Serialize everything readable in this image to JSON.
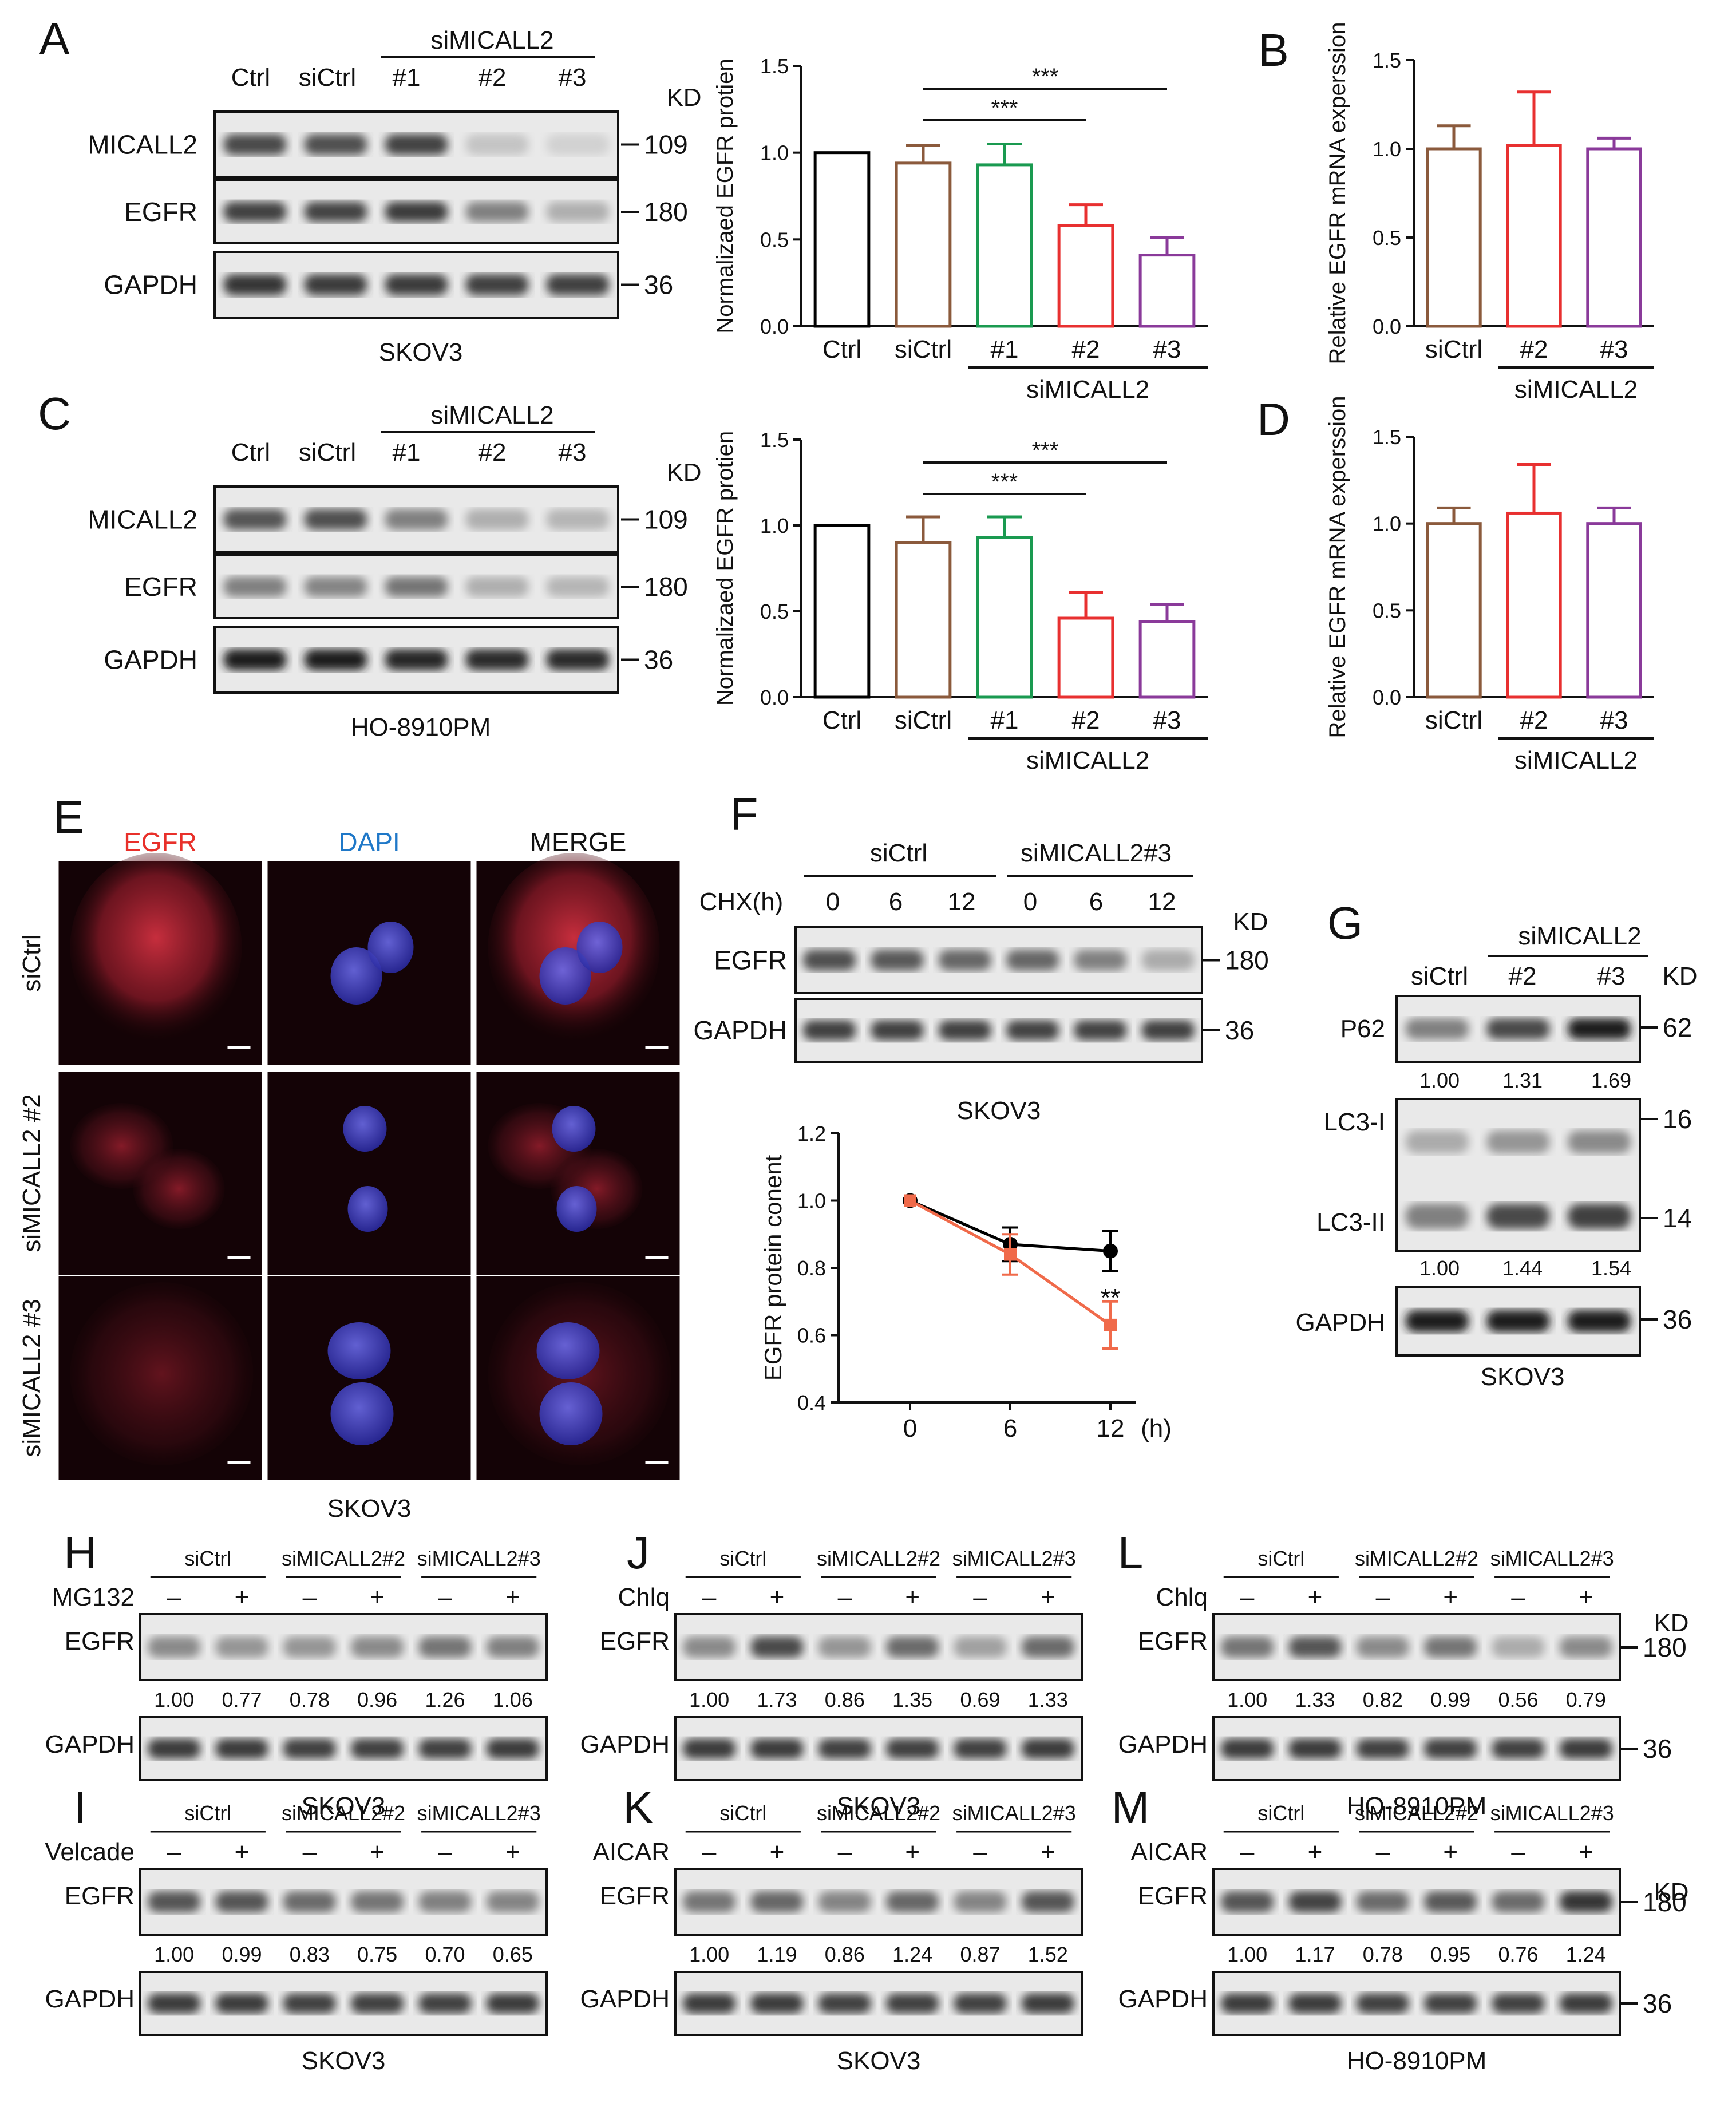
{
  "kd_label": "KD",
  "A": {
    "letter": "A",
    "group_label": "siMICALL2",
    "lanes": [
      "Ctrl",
      "siCtrl",
      "#1",
      "#2",
      "#3"
    ],
    "rows": [
      {
        "label": "MICALL2",
        "kd": "109",
        "intensity": [
          0.75,
          0.72,
          0.78,
          0.18,
          0.12
        ]
      },
      {
        "label": "EGFR",
        "kd": "180",
        "intensity": [
          0.8,
          0.78,
          0.82,
          0.5,
          0.28
        ]
      },
      {
        "label": "GAPDH",
        "kd": "36",
        "intensity": [
          0.85,
          0.82,
          0.82,
          0.8,
          0.8
        ]
      }
    ],
    "cell_line": "SKOV3"
  },
  "C": {
    "letter": "C",
    "group_label": "siMICALL2",
    "lanes": [
      "Ctrl",
      "siCtrl",
      "#1",
      "#2",
      "#3"
    ],
    "rows": [
      {
        "label": "MICALL2",
        "kd": "109",
        "intensity": [
          0.7,
          0.72,
          0.5,
          0.28,
          0.25
        ]
      },
      {
        "label": "EGFR",
        "kd": "180",
        "intensity": [
          0.5,
          0.48,
          0.55,
          0.28,
          0.25
        ]
      },
      {
        "label": "GAPDH",
        "kd": "36",
        "intensity": [
          0.95,
          0.95,
          0.92,
          0.9,
          0.9
        ]
      }
    ],
    "cell_line": "HO-8910PM"
  },
  "E": {
    "letter": "E",
    "columns": [
      "EGFR",
      "DAPI",
      "MERGE"
    ],
    "column_colors": [
      "#e8302a",
      "#1f78c8",
      "#111111"
    ],
    "rows": [
      "siCtrl",
      "siMICALL2 #2",
      "siMICALL2 #3"
    ],
    "cell_line": "SKOV3"
  },
  "F": {
    "letter": "F",
    "groups": [
      "siCtrl",
      "siMICALL2#3"
    ],
    "chx_label": "CHX(h)",
    "timepoints": [
      "0",
      "6",
      "12",
      "0",
      "6",
      "12"
    ],
    "rows": [
      {
        "label": "EGFR",
        "kd": "180",
        "intensity": [
          0.72,
          0.68,
          0.62,
          0.62,
          0.5,
          0.3
        ]
      },
      {
        "label": "GAPDH",
        "kd": "36",
        "intensity": [
          0.8,
          0.8,
          0.8,
          0.78,
          0.78,
          0.8
        ]
      }
    ],
    "cell_line": "SKOV3"
  },
  "G": {
    "letter": "G",
    "group_label": "siMICALL2",
    "lanes": [
      "siCtrl",
      "#2",
      "#3"
    ],
    "p62": {
      "label": "P62",
      "kd": "62",
      "values": [
        "1.00",
        "1.31",
        "1.69"
      ],
      "intensity": [
        0.5,
        0.75,
        0.95
      ]
    },
    "lc3": {
      "label_i": "LC3-I",
      "label_ii": "LC3-II",
      "kd_i": "16",
      "kd_ii": "14",
      "values": [
        "1.00",
        "1.44",
        "1.54"
      ],
      "intensity_i": [
        0.3,
        0.4,
        0.45
      ],
      "intensity_ii": [
        0.5,
        0.75,
        0.8
      ]
    },
    "gapdh": {
      "label": "GAPDH",
      "kd": "36",
      "intensity": [
        0.95,
        0.95,
        0.95
      ]
    },
    "cell_line": "SKOV3"
  },
  "treat_panels": [
    {
      "letter": "H",
      "treatment": "MG132",
      "values": [
        "1.00",
        "0.77",
        "0.78",
        "0.96",
        "1.26",
        "1.06"
      ],
      "intensity": [
        0.45,
        0.4,
        0.4,
        0.45,
        0.55,
        0.5
      ],
      "cell_line": "SKOV3",
      "kd_labels": false
    },
    {
      "letter": "J",
      "treatment": "Chlq",
      "values": [
        "1.00",
        "1.73",
        "0.86",
        "1.35",
        "0.69",
        "1.33"
      ],
      "intensity": [
        0.45,
        0.75,
        0.4,
        0.6,
        0.35,
        0.6
      ],
      "cell_line": "SKOV3",
      "kd_labels": false
    },
    {
      "letter": "L",
      "treatment": "Chlq",
      "values": [
        "1.00",
        "1.33",
        "0.82",
        "0.99",
        "0.56",
        "0.79"
      ],
      "intensity": [
        0.55,
        0.7,
        0.45,
        0.55,
        0.3,
        0.45
      ],
      "cell_line": "HO-8910PM",
      "kd_labels": true
    },
    {
      "letter": "I",
      "treatment": "Velcade",
      "values": [
        "1.00",
        "0.99",
        "0.83",
        "0.75",
        "0.70",
        "0.65"
      ],
      "intensity": [
        0.7,
        0.7,
        0.6,
        0.55,
        0.5,
        0.48
      ],
      "cell_line": "SKOV3",
      "kd_labels": false
    },
    {
      "letter": "K",
      "treatment": "AICAR",
      "values": [
        "1.00",
        "1.19",
        "0.86",
        "1.24",
        "0.87",
        "1.52"
      ],
      "intensity": [
        0.55,
        0.62,
        0.48,
        0.62,
        0.48,
        0.7
      ],
      "cell_line": "SKOV3",
      "kd_labels": false
    },
    {
      "letter": "M",
      "treatment": "AICAR",
      "values": [
        "1.00",
        "1.17",
        "0.78",
        "0.95",
        "0.76",
        "1.24"
      ],
      "intensity": [
        0.7,
        0.78,
        0.6,
        0.68,
        0.6,
        0.85
      ],
      "cell_line": "HO-8910PM",
      "kd_labels": true
    }
  ],
  "treat_common": {
    "groups": [
      "siCtrl",
      "siMICALL2#2",
      "siMICALL2#3"
    ],
    "signs": [
      "–",
      "+",
      "–",
      "+",
      "–",
      "+"
    ],
    "row_egfr": "EGFR",
    "row_gapdh": "GAPDH",
    "kd_egfr": "180",
    "kd_gapdh": "36"
  },
  "chart_data": [
    {
      "panel": "A",
      "type": "bar",
      "ylabel": "Normalizaed EGFR protien",
      "ylim": [
        0,
        1.5
      ],
      "yticks": [
        "0.0",
        "0.5",
        "1.0",
        "1.5"
      ],
      "categories": [
        "Ctrl",
        "siCtrl",
        "#1",
        "#2",
        "#3"
      ],
      "group_label": "siMICALL2",
      "values": [
        1.0,
        0.94,
        0.93,
        0.58,
        0.41
      ],
      "errors": [
        0,
        0.1,
        0.12,
        0.12,
        0.1
      ],
      "colors": [
        "#000000",
        "#8b5a3c",
        "#1a9a50",
        "#e83030",
        "#8a3a9a"
      ],
      "significance": [
        {
          "from": 1,
          "to": 3,
          "label": "***"
        },
        {
          "from": 1,
          "to": 4,
          "label": "***"
        }
      ]
    },
    {
      "panel": "B",
      "type": "bar",
      "ylabel": "Relative EGFR mRNA experssion",
      "ylim": [
        0,
        1.5
      ],
      "yticks": [
        "0.0",
        "0.5",
        "1.0",
        "1.5"
      ],
      "categories": [
        "siCtrl",
        "#2",
        "#3"
      ],
      "group_label": "siMICALL2",
      "values": [
        1.0,
        1.02,
        1.0
      ],
      "errors": [
        0.13,
        0.3,
        0.06
      ],
      "colors": [
        "#8b5a3c",
        "#e83030",
        "#8a3a9a"
      ]
    },
    {
      "panel": "C",
      "type": "bar",
      "ylabel": "Normalizaed EGFR protien",
      "ylim": [
        0,
        1.5
      ],
      "yticks": [
        "0.0",
        "0.5",
        "1.0",
        "1.5"
      ],
      "categories": [
        "Ctrl",
        "siCtrl",
        "#1",
        "#2",
        "#3"
      ],
      "group_label": "siMICALL2",
      "values": [
        1.0,
        0.9,
        0.93,
        0.46,
        0.44
      ],
      "errors": [
        0,
        0.15,
        0.12,
        0.15,
        0.1
      ],
      "colors": [
        "#000000",
        "#8b5a3c",
        "#1a9a50",
        "#e83030",
        "#8a3a9a"
      ],
      "significance": [
        {
          "from": 1,
          "to": 3,
          "label": "***"
        },
        {
          "from": 1,
          "to": 4,
          "label": "***"
        }
      ]
    },
    {
      "panel": "D",
      "type": "bar",
      "ylabel": "Relative EGFR mRNA experssion",
      "ylim": [
        0,
        1.5
      ],
      "yticks": [
        "0.0",
        "0.5",
        "1.0",
        "1.5"
      ],
      "categories": [
        "siCtrl",
        "#2",
        "#3"
      ],
      "group_label": "siMICALL2",
      "values": [
        1.0,
        1.06,
        1.0
      ],
      "errors": [
        0.09,
        0.28,
        0.09
      ],
      "colors": [
        "#8b5a3c",
        "#e83030",
        "#8a3a9a"
      ]
    },
    {
      "panel": "F",
      "type": "line",
      "ylabel": "EGFR protein conent",
      "xunit": "(h)",
      "x": [
        0,
        6,
        12
      ],
      "xticks": [
        "0",
        "6",
        "12"
      ],
      "ylim": [
        0.4,
        1.2
      ],
      "yticks": [
        "0.4",
        "0.6",
        "0.8",
        "1.0",
        "1.2"
      ],
      "series": [
        {
          "values": [
            1.0,
            0.87,
            0.85
          ],
          "errors": [
            0,
            0.05,
            0.06
          ],
          "color": "#000000"
        },
        {
          "values": [
            1.0,
            0.84,
            0.63
          ],
          "errors": [
            0,
            0.06,
            0.07
          ],
          "color": "#f06a4a"
        }
      ],
      "annotation": "**"
    }
  ]
}
